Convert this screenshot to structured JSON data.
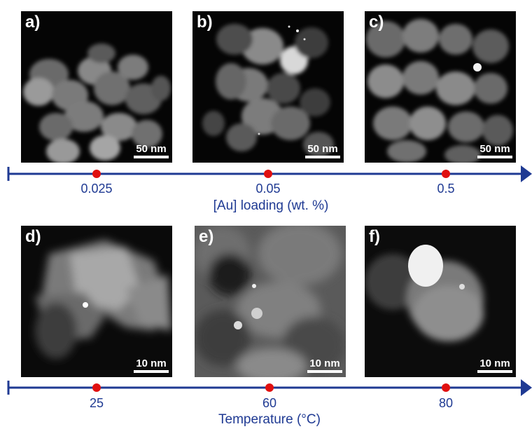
{
  "panels": [
    {
      "label": "a)",
      "scale": "50 nm"
    },
    {
      "label": "b)",
      "scale": "50 nm"
    },
    {
      "label": "c)",
      "scale": "50 nm"
    },
    {
      "label": "d)",
      "scale": "10 nm"
    },
    {
      "label": "e)",
      "scale": "10 nm"
    },
    {
      "label": "f)",
      "scale": "10 nm"
    }
  ],
  "axis1": {
    "ticks": [
      "0.025",
      "0.05",
      "0.5"
    ],
    "title": "[Au] loading (wt. %)"
  },
  "axis2": {
    "ticks": [
      "25",
      "60",
      "80"
    ],
    "title": "Temperature (°C)"
  },
  "colors": {
    "axis": "#1f3a93",
    "marker": "#e01010",
    "image_bg": "#050505"
  }
}
